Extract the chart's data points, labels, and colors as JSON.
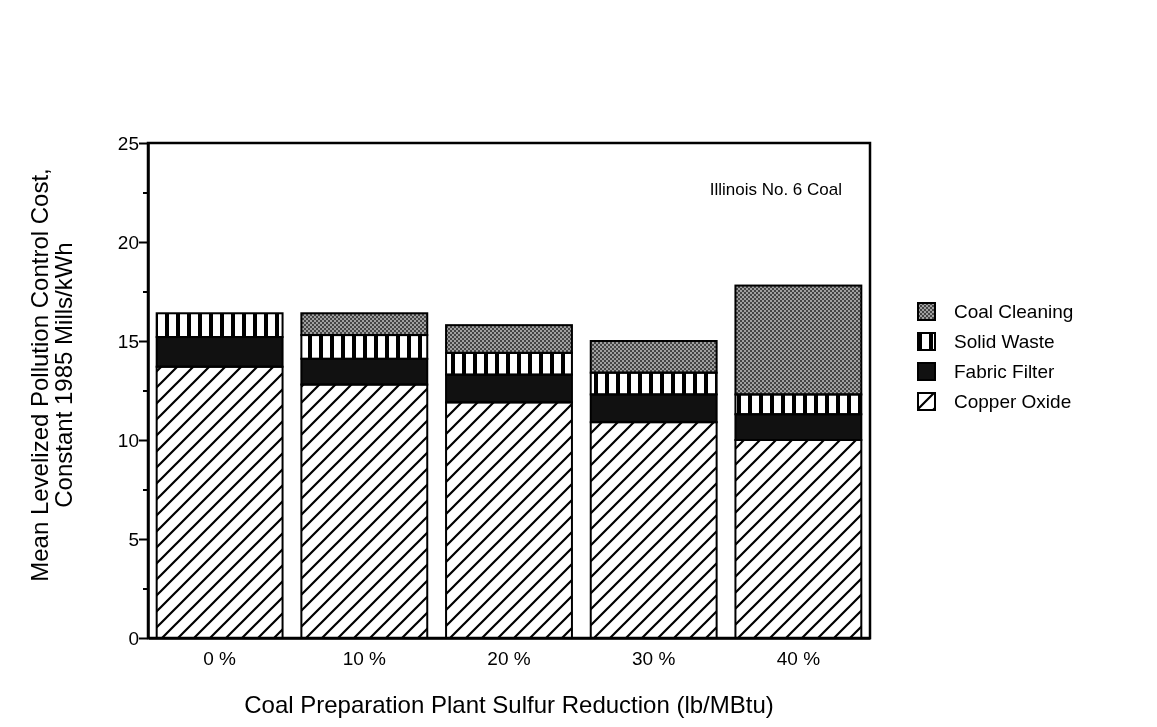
{
  "chart_data": {
    "type": "bar",
    "stacked": true,
    "xlabel": "Coal Preparation Plant Sulfur Reduction (lb/MBtu)",
    "ylabel": "Mean Levelized Pollution Control Cost,\nConstant 1985 Mills/kWh",
    "categories": [
      "0 %",
      "10 %",
      "20 %",
      "30 %",
      "40 %"
    ],
    "series": [
      {
        "name": "Copper Oxide",
        "color": "#ffffff",
        "values": [
          13.7,
          12.8,
          11.9,
          10.9,
          10.0
        ]
      },
      {
        "name": "Fabric Filter",
        "color": "#111111",
        "values": [
          1.5,
          1.3,
          1.4,
          1.4,
          1.3
        ]
      },
      {
        "name": "Solid Waste",
        "color": "#ffffff",
        "values": [
          1.2,
          1.2,
          1.1,
          1.1,
          1.0
        ]
      },
      {
        "name": "Coal Cleaning",
        "color": "#a0a0a0",
        "values": [
          0,
          1.1,
          1.4,
          1.6,
          5.5
        ]
      }
    ],
    "ylim": [
      0,
      25
    ],
    "yticks": [
      0,
      {
        "value": 2.5,
        "label": null
      },
      5,
      {
        "value": 7.5,
        "label": null
      },
      10,
      {
        "value": 12.5,
        "label": null
      },
      15,
      {
        "value": 17.5,
        "label": null
      },
      20,
      {
        "value": 22.5,
        "label": null
      },
      25
    ],
    "annotations": [
      "Illinois No. 6 Coal"
    ],
    "legend": "right"
  }
}
